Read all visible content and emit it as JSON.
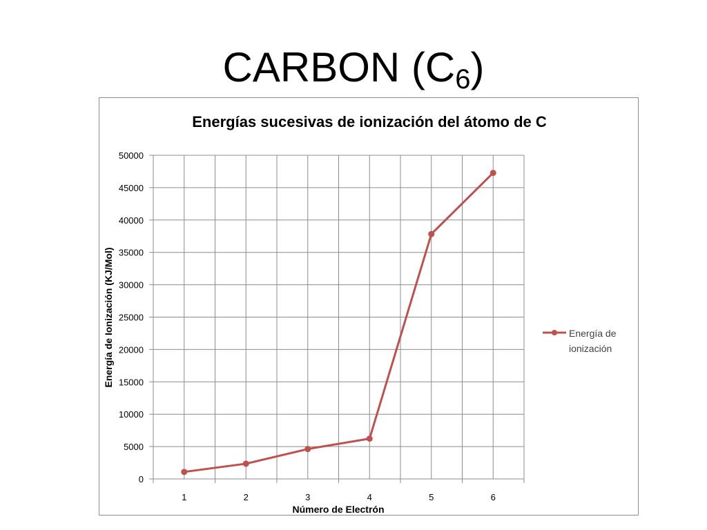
{
  "slide": {
    "title_main": "CARBON (C",
    "title_sub": "6",
    "title_close": ")"
  },
  "chart_data": {
    "type": "line",
    "title": "Energías sucesivas de ionización del átomo de C",
    "xlabel": "Número de Electrón",
    "ylabel": "Energía de Ionización (KJ/Mol)",
    "categories": [
      "1",
      "2",
      "3",
      "4",
      "5",
      "6"
    ],
    "series": [
      {
        "name": "Energía de ionización",
        "values": [
          1086,
          2353,
          4621,
          6223,
          37831,
          47277
        ]
      }
    ],
    "ylim": [
      0,
      50000
    ],
    "yticks": [
      "0",
      "5000",
      "10000",
      "15000",
      "20000",
      "25000",
      "30000",
      "35000",
      "40000",
      "45000",
      "50000"
    ],
    "legend": {
      "line1": "Energía de",
      "line2": "ionización",
      "position": "right"
    },
    "grid": true,
    "colors": {
      "series": "#c0504d",
      "grid": "#8c8c8c",
      "axis": "#8c8c8c"
    }
  }
}
